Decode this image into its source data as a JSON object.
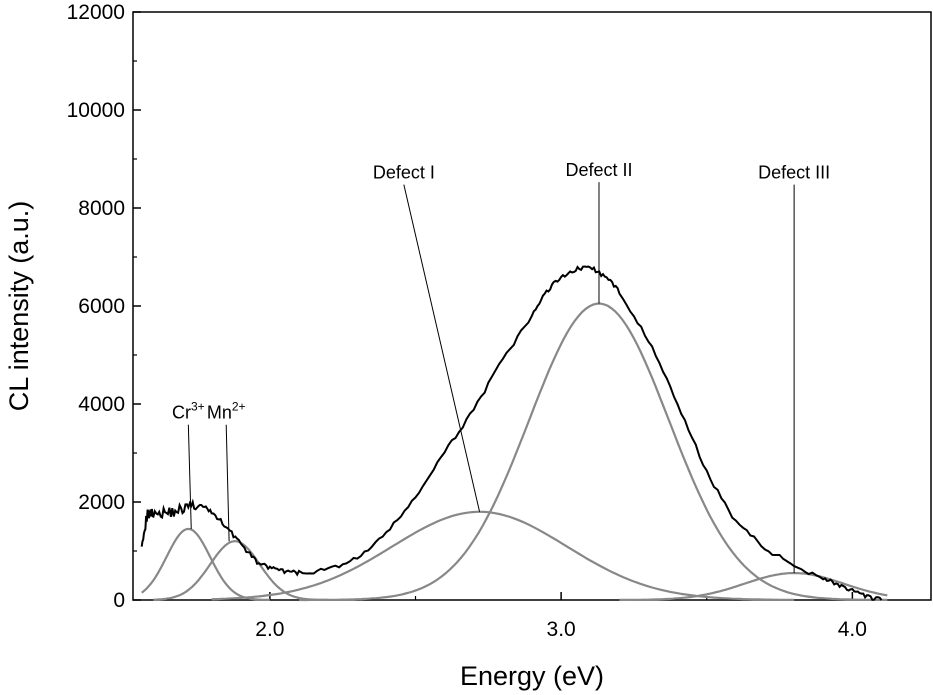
{
  "chart_data": {
    "type": "line",
    "title": "",
    "xlabel": "Energy (eV)",
    "ylabel": "CL intensity (a.u.)",
    "xlim": [
      1.53,
      4.27
    ],
    "ylim": [
      0,
      12000
    ],
    "x_ticks": [
      2.0,
      3.0,
      4.0
    ],
    "x_tick_labels": [
      "2.0",
      "3.0",
      "4.0"
    ],
    "y_ticks": [
      0,
      2000,
      4000,
      6000,
      8000,
      10000,
      12000
    ],
    "y_tick_labels": [
      "0",
      "2000",
      "4000",
      "6000",
      "8000",
      "10000",
      "12000"
    ],
    "grid": false,
    "legend": "none",
    "colors": {
      "measured": "#000000",
      "components": "#888888",
      "leader": "#000000"
    },
    "measured": {
      "x": [
        1.56,
        1.58,
        1.6,
        1.64,
        1.68,
        1.72,
        1.76,
        1.8,
        1.85,
        1.9,
        1.95,
        2.0,
        2.05,
        2.1,
        2.2,
        2.3,
        2.4,
        2.5,
        2.6,
        2.7,
        2.8,
        2.9,
        2.95,
        3.0,
        3.05,
        3.1,
        3.15,
        3.2,
        3.3,
        3.4,
        3.5,
        3.6,
        3.7,
        3.8,
        3.9,
        3.95,
        4.0,
        4.05,
        4.1
      ],
      "y": [
        1200,
        1750,
        1800,
        1780,
        1820,
        1900,
        1930,
        1800,
        1500,
        1150,
        800,
        650,
        580,
        550,
        620,
        850,
        1350,
        2100,
        3000,
        3900,
        4900,
        5800,
        6300,
        6600,
        6750,
        6800,
        6600,
        6300,
        5300,
        4000,
        2600,
        1600,
        1050,
        700,
        450,
        320,
        180,
        60,
        0
      ]
    },
    "components": [
      {
        "label": "Cr3+",
        "center": 1.72,
        "amplitude": 1450,
        "sigma": 0.075,
        "x_range": [
          1.56,
          2.0
        ]
      },
      {
        "label": "Mn2+",
        "center": 1.88,
        "amplitude": 1200,
        "sigma": 0.085,
        "x_range": [
          1.6,
          2.2
        ]
      },
      {
        "label": "Defect I",
        "center": 2.72,
        "amplitude": 1800,
        "sigma": 0.3,
        "x_range": [
          1.8,
          3.8
        ]
      },
      {
        "label": "Defect II",
        "center": 3.13,
        "amplitude": 6050,
        "sigma": 0.24,
        "x_range": [
          2.1,
          4.12
        ]
      },
      {
        "label": "Defect III",
        "center": 3.8,
        "amplitude": 550,
        "sigma": 0.17,
        "x_range": [
          3.2,
          4.12
        ]
      }
    ],
    "annotations": [
      {
        "base": "Cr",
        "sup": "3+",
        "text_xy": [
          1.72,
          3700
        ],
        "point_xy": [
          1.73,
          1450
        ]
      },
      {
        "base": "Mn",
        "sup": "2+",
        "text_xy": [
          1.85,
          3700
        ],
        "point_xy": [
          1.86,
          1200
        ]
      },
      {
        "base": "Defect I",
        "sup": "",
        "text_xy": [
          2.46,
          8600
        ],
        "point_xy": [
          2.72,
          1800
        ]
      },
      {
        "base": "Defect II",
        "sup": "",
        "text_xy": [
          3.13,
          8650
        ],
        "point_xy": [
          3.13,
          6050
        ]
      },
      {
        "base": "Defect III",
        "sup": "",
        "text_xy": [
          3.8,
          8600
        ],
        "point_xy": [
          3.8,
          550
        ]
      }
    ]
  }
}
